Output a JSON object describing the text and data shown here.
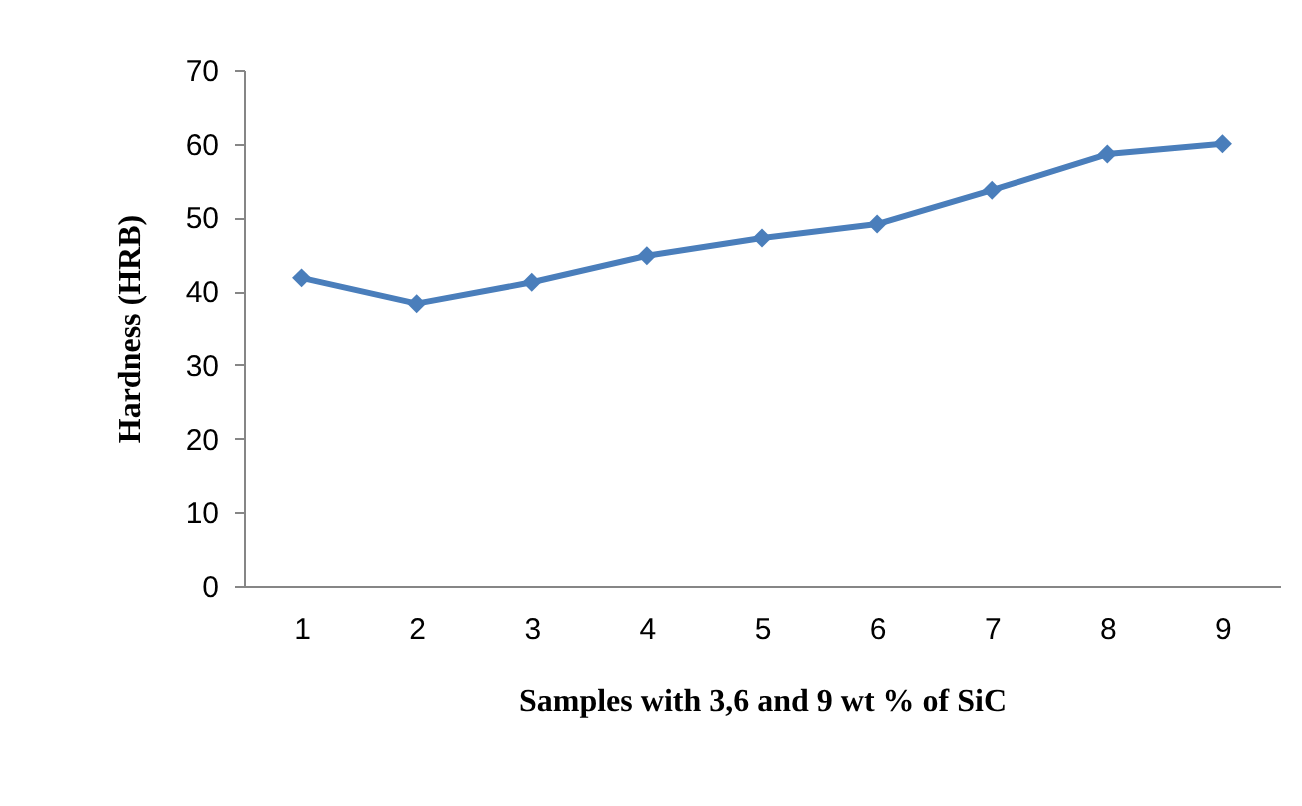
{
  "chart_data": {
    "type": "line",
    "xlabel": "Samples with 3,6 and 9 wt % of SiC",
    "ylabel": "Hardness (HRB)",
    "categories": [
      "1",
      "2",
      "3",
      "4",
      "5",
      "6",
      "7",
      "8",
      "9"
    ],
    "series": [
      {
        "color": "#4a7ebb",
        "values": [
          41.8,
          38.3,
          41.2,
          44.8,
          47.2,
          49.1,
          53.7,
          58.6,
          60
        ]
      }
    ],
    "ylim": [
      0,
      70
    ],
    "yticks": [
      0,
      10,
      20,
      30,
      40,
      50,
      60,
      70
    ],
    "grid": false,
    "marker": "diamond",
    "line_style": "solid"
  }
}
